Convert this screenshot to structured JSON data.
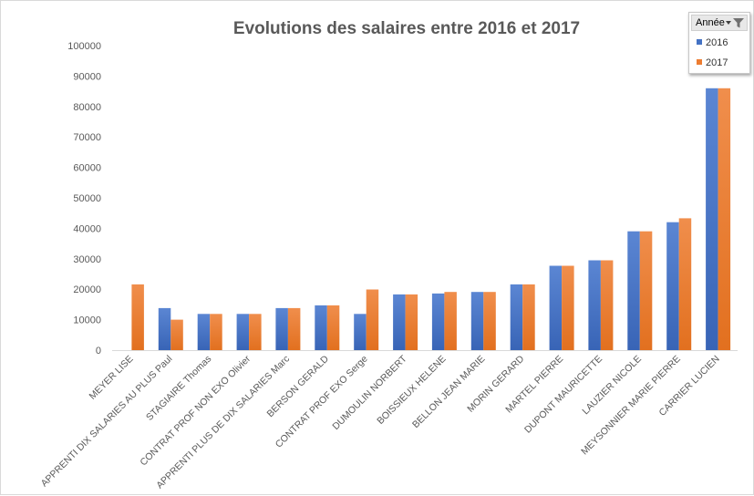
{
  "title": "Evolutions des salaires entre 2016 et 2017",
  "legend": {
    "header": "Année",
    "items": [
      {
        "label": "2016",
        "color": "#4472C4"
      },
      {
        "label": "2017",
        "color": "#ED7D31"
      }
    ]
  },
  "chart_data": {
    "type": "bar",
    "title": "Evolutions des salaires entre 2016 et 2017",
    "xlabel": "",
    "ylabel": "",
    "ylim": [
      0,
      100000
    ],
    "yticks": [
      0,
      10000,
      20000,
      30000,
      40000,
      50000,
      60000,
      70000,
      80000,
      90000,
      100000
    ],
    "grid": false,
    "legend_position": "top-right",
    "categories": [
      "MEYER LISE",
      "APPRENTI DIX SALARIES AU PLUS Paul",
      "STAGIAIRE Thomas",
      "CONTRAT PROF NON EXO Olivier",
      "APPRENTI PLUS DE DIX SALARIES Marc",
      "BERSON GERALD",
      "CONTRAT PROF EXO Serge",
      "DUMOULIN NORBERT",
      "BOISSIEUX HELENE",
      "BELLON JEAN MARIE",
      "MORIN GERARD",
      "MARTEL PIERRE",
      "DUPONT MAURICETTE",
      "LAUZIER NICOLE",
      "MEYSONNIER MARIE PIERRE",
      "CARRIER LUCIEN"
    ],
    "series": [
      {
        "name": "2016",
        "color": "#4472C4",
        "values": [
          0,
          13800,
          11900,
          11900,
          13800,
          14700,
          11900,
          18300,
          18600,
          19100,
          21600,
          27700,
          29500,
          39000,
          42000,
          86000
        ]
      },
      {
        "name": "2017",
        "color": "#ED7D31",
        "values": [
          21600,
          10000,
          11900,
          11900,
          13800,
          14700,
          19900,
          18300,
          19100,
          19100,
          21600,
          27700,
          29500,
          39000,
          43300,
          86000
        ]
      }
    ]
  }
}
